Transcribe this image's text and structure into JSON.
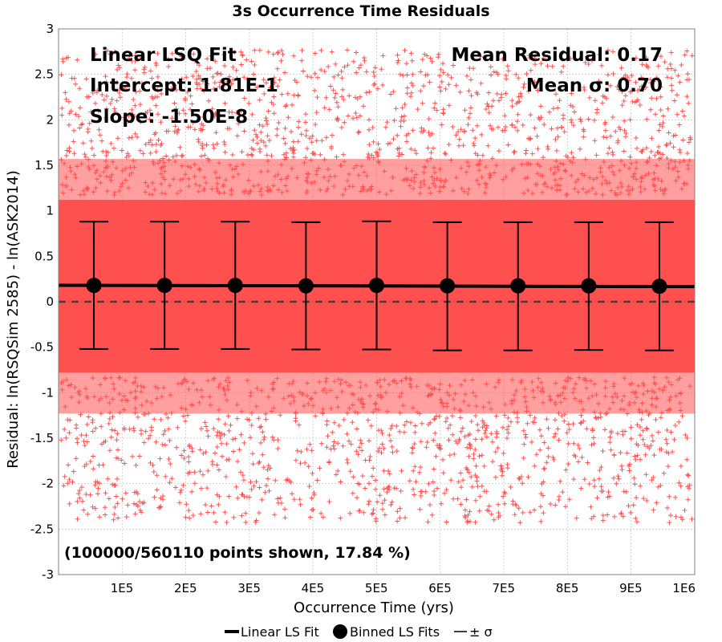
{
  "chart_data": {
    "type": "scatter",
    "title": "3s Occurrence Time Residuals",
    "xlabel": "Occurrence Time (yrs)",
    "ylabel": "Residual: ln(RSQSim 2585) - ln(ASK2014)",
    "xlim": [
      0,
      1000000
    ],
    "ylim": [
      -3,
      3
    ],
    "x_ticks": [
      100000,
      200000,
      300000,
      400000,
      500000,
      600000,
      700000,
      800000,
      900000,
      1000000
    ],
    "x_tick_labels": [
      "1E5",
      "2E5",
      "3E5",
      "4E5",
      "5E5",
      "6E5",
      "7E5",
      "8E5",
      "9E5",
      "1E6"
    ],
    "y_ticks": [
      -3,
      -2.5,
      -2,
      -1.5,
      -1,
      -0.5,
      0,
      0.5,
      1,
      1.5,
      2,
      2.5,
      3
    ],
    "y_tick_labels": [
      "-3",
      "-2.5",
      "-2",
      "-1.5",
      "-1",
      "-0.5",
      "0",
      "0.5",
      "1",
      "1.5",
      "2",
      "2.5",
      "3"
    ],
    "grid": true,
    "colors": {
      "points": "#ff5050",
      "fit_line": "#000000",
      "zero_line": "#404040",
      "grid": "#d0d0d0"
    },
    "scatter_cloud": {
      "points_shown": 100000,
      "points_total": 560110,
      "mean": 0.17,
      "sigma": 0.7
    },
    "linear_fit": {
      "intercept": 0.181,
      "slope": -1.5e-08
    },
    "binned_fits": [
      {
        "x": 55556,
        "mean": 0.18,
        "plus": 0.88,
        "minus": -0.52
      },
      {
        "x": 166667,
        "mean": 0.18,
        "plus": 0.88,
        "minus": -0.52
      },
      {
        "x": 277778,
        "mean": 0.18,
        "plus": 0.88,
        "minus": -0.52
      },
      {
        "x": 388889,
        "mean": 0.175,
        "plus": 0.875,
        "minus": -0.525
      },
      {
        "x": 500000,
        "mean": 0.18,
        "plus": 0.885,
        "minus": -0.525
      },
      {
        "x": 611111,
        "mean": 0.175,
        "plus": 0.875,
        "minus": -0.535
      },
      {
        "x": 722222,
        "mean": 0.175,
        "plus": 0.875,
        "minus": -0.535
      },
      {
        "x": 833333,
        "mean": 0.175,
        "plus": 0.875,
        "minus": -0.53
      },
      {
        "x": 944444,
        "mean": 0.17,
        "plus": 0.875,
        "minus": -0.535
      }
    ],
    "annotations": {
      "fit_title": "Linear LSQ Fit",
      "intercept": "Intercept: 1.81E-1",
      "slope": "Slope: -1.50E-8",
      "mean_residual": "Mean Residual: 0.17",
      "mean_sigma": "Mean σ: 0.70",
      "points_note": "(100000/560110 points shown, 17.84 %)"
    },
    "legend": [
      {
        "label": "Linear LS Fit",
        "symbol": "line"
      },
      {
        "label": "Binned LS Fits",
        "symbol": "circle"
      },
      {
        "label": "± σ",
        "symbol": "thin-line"
      }
    ]
  }
}
